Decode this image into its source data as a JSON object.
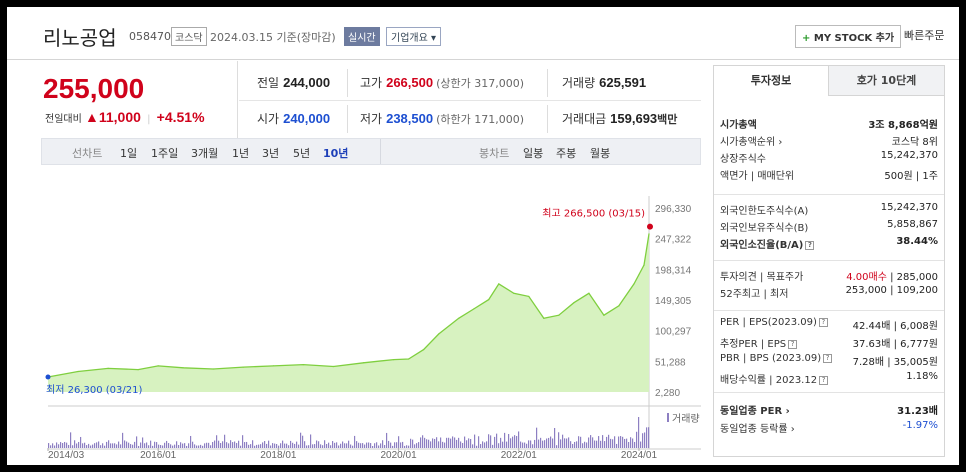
{
  "stock": {
    "name": "리노공업",
    "code": "058470",
    "market": "코스닥",
    "date_text": "2024.03.15  기준(장마감)",
    "realtime_label": "실시간",
    "overview_label": "기업개요",
    "my_stock_label": "MY STOCK 추가",
    "quick_order_label": "빠른주문"
  },
  "price": {
    "current": "255,000",
    "compare_label": "전일대비",
    "change": "11,000",
    "change_pct": "+4.51%"
  },
  "stats": {
    "prev_label": "전일",
    "prev": "244,000",
    "high_label": "고가",
    "high": "266,500",
    "upper_limit": "(상한가 317,000)",
    "volume_label": "거래량",
    "volume": "625,591",
    "open_label": "시가",
    "open": "240,000",
    "low_label": "저가",
    "low": "238,500",
    "lower_limit": "(하한가 171,000)",
    "amount_label": "거래대금",
    "amount": "159,693",
    "amount_unit": "백만"
  },
  "period_bar": {
    "line_label": "선차트",
    "periods": [
      "1일",
      "1주일",
      "3개월",
      "1년",
      "3년",
      "5년",
      "10년"
    ],
    "active_period": "10년",
    "candle_label": "봉차트",
    "candle_periods": [
      "일봉",
      "주봉",
      "월봉"
    ]
  },
  "chart_data": {
    "type": "area",
    "x_ticks": [
      "2014/03",
      "2016/01",
      "2018/01",
      "2020/01",
      "2022/01",
      "2024/01"
    ],
    "y_ticks": [
      "296,330",
      "247,322",
      "198,314",
      "149,305",
      "100,297",
      "51,288",
      "2,280"
    ],
    "ylim": [
      2280,
      296330
    ],
    "x": [
      "2014/03",
      "2014/09",
      "2015/03",
      "2015/09",
      "2016/01",
      "2016/06",
      "2016/12",
      "2017/06",
      "2017/12",
      "2018/06",
      "2018/12",
      "2019/06",
      "2019/12",
      "2020/03",
      "2020/06",
      "2020/09",
      "2021/01",
      "2021/04",
      "2021/07",
      "2021/09",
      "2021/12",
      "2022/03",
      "2022/06",
      "2022/09",
      "2022/12",
      "2023/03",
      "2023/06",
      "2023/09",
      "2023/12",
      "2024/01",
      "2024/02",
      "2024/03"
    ],
    "values": [
      26300,
      35000,
      40000,
      38000,
      44000,
      41000,
      39000,
      42000,
      44000,
      46000,
      43000,
      49000,
      54000,
      55000,
      70000,
      95000,
      120000,
      135000,
      150000,
      175000,
      160000,
      155000,
      120000,
      125000,
      145000,
      160000,
      125000,
      140000,
      175000,
      190000,
      205000,
      255000
    ],
    "max_label": "최고 266,500 (03/15)",
    "min_label": "최저 26,300 (03/21)",
    "volume_label": "거래량",
    "colors": {
      "line": "#7fcf3f",
      "fill": "#d7f2c0",
      "volume": "#8d7fc2",
      "max": "#d0021b",
      "min": "#1d4fd1"
    }
  },
  "right_panel": {
    "tab_active": "투자정보",
    "tab_other": "호가 10단계",
    "rows1": [
      {
        "label": "시가총액",
        "value": "3조 8,868억원",
        "bold": true
      },
      {
        "label": "시가총액순위 ›",
        "value": "코스닥 8위"
      },
      {
        "label": "상장주식수",
        "value": "15,242,370"
      },
      {
        "label": "액면가 | 매매단위",
        "value": "500원 | 1주"
      }
    ],
    "rows2": [
      {
        "label": "외국인한도주식수(A)",
        "value": "15,242,370"
      },
      {
        "label": "외국인보유주식수(B)",
        "value": "5,858,867"
      },
      {
        "label": "외국인소진율(B/A)",
        "value": "38.44%",
        "bold": true
      }
    ],
    "opinion_label": "투자의견 | 목표주가",
    "opinion_value": "4.00매수",
    "target_value": "285,000",
    "w52_label": "52주최고 | 최저",
    "w52_value": "253,000 | 109,200",
    "rows4": [
      {
        "label": "PER | EPS(2023.09)",
        "value": "42.44배 | 6,008원"
      },
      {
        "label": "추정PER | EPS",
        "value": "37.63배 | 6,777원"
      },
      {
        "label": "PBR | BPS (2023.09)",
        "value": "7.28배 | 35,005원"
      },
      {
        "label": "배당수익률 | 2023.12",
        "value": "1.18%"
      }
    ],
    "industry_per_label": "동일업종 PER ›",
    "industry_per_value": "31.23배",
    "industry_rate_label": "동일업종 등락률 ›",
    "industry_rate_value": "-1.97%"
  }
}
